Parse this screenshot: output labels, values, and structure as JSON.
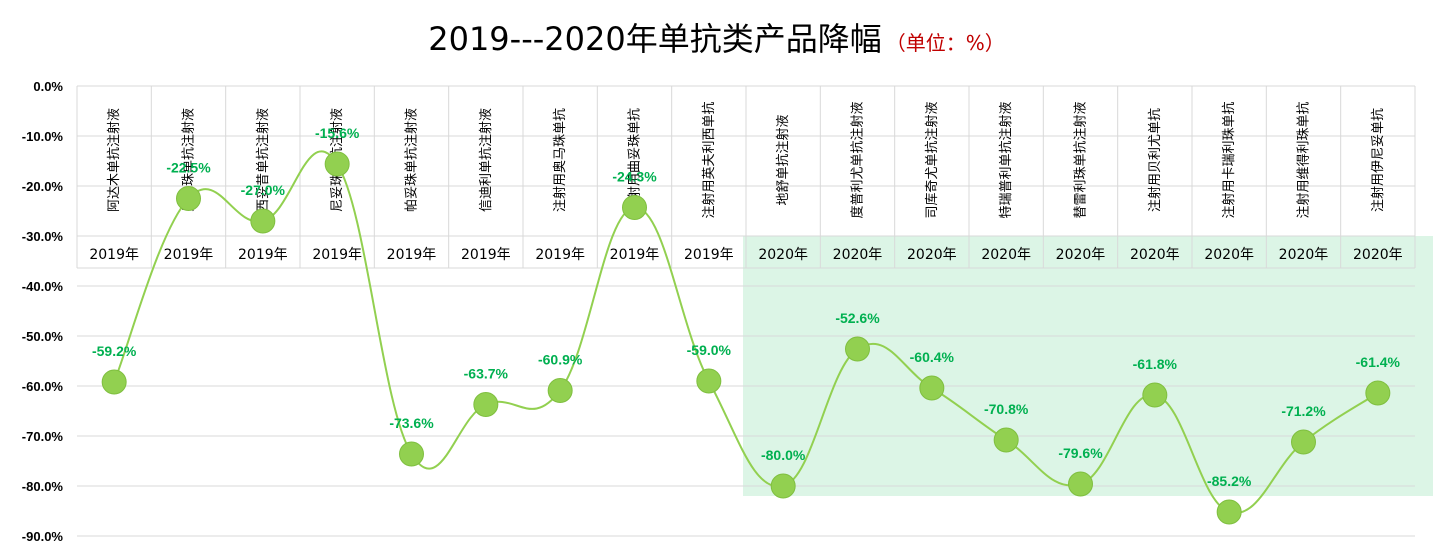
{
  "title": "2019---2020年单抗类产品降幅",
  "unit_note": "（单位：%）",
  "chart_data": {
    "type": "line",
    "title": "2019---2020年单抗类产品降幅",
    "ylim": [
      -90,
      0
    ],
    "yticks": [
      "0.0%",
      "-10.0%",
      "-20.0%",
      "-30.0%",
      "-40.0%",
      "-50.0%",
      "-60.0%",
      "-70.0%",
      "-80.0%",
      "-90.0%"
    ],
    "grid": true,
    "smooth": true,
    "line_color": "#92d050",
    "marker_color": "#92d050",
    "label_color": "#00b050",
    "highlight_color": "#dcf5e6",
    "categories": [
      {
        "name": "阿达木单抗注射液",
        "year": "2019年"
      },
      {
        "name": "贝伐珠单抗注射液",
        "year": "2019年"
      },
      {
        "name": "西妥昔单抗注射液",
        "year": "2019年"
      },
      {
        "name": "尼妥珠单抗注射液",
        "year": "2019年"
      },
      {
        "name": "帕妥珠单抗注射液",
        "year": "2019年"
      },
      {
        "name": "信迪利单抗注射液",
        "year": "2019年"
      },
      {
        "name": "注射用奥马珠单抗",
        "year": "2019年"
      },
      {
        "name": "注射用曲妥珠单抗",
        "year": "2019年"
      },
      {
        "name": "注射用英夫利西单抗",
        "year": "2019年"
      },
      {
        "name": "地舒单抗注射液",
        "year": "2020年"
      },
      {
        "name": "度普利尤单抗注射液",
        "year": "2020年"
      },
      {
        "name": "司库奇尤单抗注射液",
        "year": "2020年"
      },
      {
        "name": "特瑞普利单抗注射液",
        "year": "2020年"
      },
      {
        "name": "替雷利珠单抗注射液",
        "year": "2020年"
      },
      {
        "name": "注射用贝利尤单抗",
        "year": "2020年"
      },
      {
        "name": "注射用卡瑞利珠单抗",
        "year": "2020年"
      },
      {
        "name": "注射用维得利珠单抗",
        "year": "2020年"
      },
      {
        "name": "注射用伊尼妥单抗",
        "year": "2020年"
      }
    ],
    "values": [
      -59.2,
      -22.5,
      -27.0,
      -15.6,
      -73.6,
      -63.7,
      -60.9,
      -24.3,
      -59.0,
      -80.0,
      -52.6,
      -60.4,
      -70.8,
      -79.6,
      -61.8,
      -85.2,
      -71.2,
      -61.4
    ],
    "data_labels": [
      "-59.2%",
      "-22.5%",
      "-27.0%",
      "-15.6%",
      "-73.6%",
      "-63.7%",
      "-60.9%",
      "-24.3%",
      "-59.0%",
      "-80.0%",
      "-52.6%",
      "-60.4%",
      "-70.8%",
      "-79.6%",
      "-61.8%",
      "-85.2%",
      "-71.2%",
      "-61.4%"
    ]
  }
}
